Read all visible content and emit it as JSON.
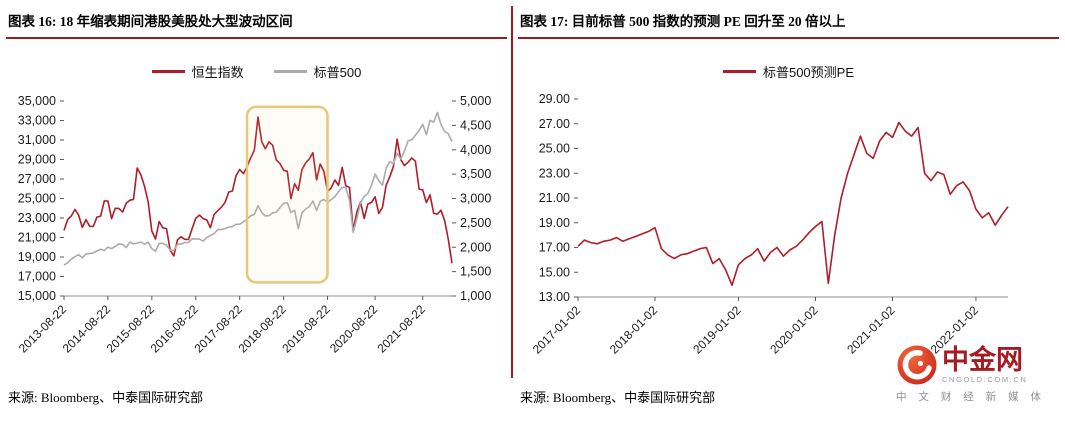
{
  "colors": {
    "accent_red": "#9E1B23",
    "line_red": "#AF1E28",
    "line_gray": "#ABABAB",
    "highlight_gold": "#E8C878",
    "axis_text": "#1C1C1C",
    "logo_red": "#A61B22",
    "logo_orange": "#DF3A24",
    "logo_gray": "#9A9A9A"
  },
  "left_panel": {
    "title": "图表 16: 18 年缩表期间港股美股处大型波动区间",
    "legend": [
      {
        "label": "恒生指数"
      },
      {
        "label": "标普500"
      }
    ],
    "source": "来源: Bloomberg、中泰国际研究部"
  },
  "right_panel": {
    "title": "图表 17: 目前标普 500 指数的预测 PE 回升至 20 倍以上",
    "legend": [
      {
        "label": "标普500预测PE"
      }
    ],
    "source": "来源: Bloomberg、中泰国际研究部"
  },
  "watermark": {
    "brand": "中金网",
    "domain": "CNGOLD.COM.CN",
    "tagline": "中 文 财 经 新 媒 体"
  },
  "chart_data": [
    {
      "id": "hsi-vs-spx",
      "type": "line",
      "title": "18 年缩表期间港股美股处大型波动区间",
      "legend_position": "top",
      "grid": false,
      "n_points": 107,
      "x_tick_labels": [
        "2013-08-22",
        "2014-08-22",
        "2015-08-22",
        "2016-08-22",
        "2017-08-22",
        "2018-08-22",
        "2019-08-22",
        "2020-08-22",
        "2021-08-22"
      ],
      "x_tick_indices": [
        0,
        12,
        24,
        36,
        48,
        60,
        72,
        85,
        98
      ],
      "axes": [
        {
          "id": "left",
          "side": "left",
          "min": 15000,
          "max": 35000,
          "step": 2000,
          "format": "thousands"
        },
        {
          "id": "right",
          "side": "right",
          "min": 1000,
          "max": 5000,
          "step": 500,
          "format": "thousands"
        }
      ],
      "series": [
        {
          "name": "恒生指数",
          "axis": "left",
          "color": "#AF1E28",
          "values": [
            21731,
            22860,
            23206,
            23881,
            23306,
            22035,
            22837,
            22151,
            22134,
            23082,
            23190,
            24757,
            24742,
            22933,
            23998,
            23987,
            23605,
            24507,
            24823,
            24901,
            28133,
            27424,
            26250,
            24636,
            21671,
            20846,
            22640,
            21996,
            21914,
            19683,
            19112,
            20777,
            21067,
            20815,
            20794,
            21891,
            22976,
            23297,
            22935,
            22790,
            22001,
            23361,
            23741,
            24112,
            24615,
            25661,
            25765,
            27324,
            27970,
            27554,
            28246,
            29177,
            29919,
            33350,
            30845,
            30093,
            30808,
            30469,
            28955,
            28583,
            27889,
            27789,
            24980,
            26507,
            25846,
            27942,
            28633,
            29051,
            29699,
            26901,
            28543,
            27778,
            25725,
            26092,
            26907,
            26346,
            28190,
            26313,
            26130,
            21696,
            23603,
            24644,
            22961,
            24427,
            24595,
            25177,
            23459,
            24107,
            26341,
            27231,
            28284,
            31085,
            28980,
            28378,
            28725,
            29152,
            28828,
            25961,
            25879,
            24576,
            25377,
            23475,
            23398,
            23802,
            22713,
            20800,
            18350
          ]
        },
        {
          "name": "标普500",
          "axis": "right",
          "color": "#ABABAB",
          "values": [
            1633,
            1682,
            1757,
            1806,
            1848,
            1783,
            1859,
            1872,
            1884,
            1924,
            1960,
            1931,
            2003,
            1972,
            2018,
            2068,
            2059,
            1995,
            2105,
            2068,
            2086,
            2107,
            2063,
            2104,
            1972,
            1920,
            2079,
            2080,
            2044,
            1940,
            1932,
            2060,
            2065,
            2097,
            2099,
            2174,
            2171,
            2168,
            2126,
            2199,
            2239,
            2279,
            2364,
            2363,
            2384,
            2412,
            2423,
            2470,
            2472,
            2519,
            2575,
            2648,
            2674,
            2850,
            2714,
            2641,
            2648,
            2705,
            2718,
            2816,
            2902,
            2914,
            2712,
            2760,
            2380,
            2704,
            2785,
            2834,
            2946,
            2752,
            2942,
            2980,
            2926,
            2977,
            3038,
            3141,
            3231,
            3226,
            2954,
            2305,
            2585,
            2912,
            3044,
            3100,
            3271,
            3500,
            3363,
            3270,
            3622,
            3756,
            3714,
            3930,
            3811,
            3973,
            4181,
            4204,
            4298,
            4395,
            4523,
            4308,
            4605,
            4567,
            4766,
            4516,
            4374,
            4328,
            4170
          ]
        }
      ],
      "highlight": {
        "x1_index": 50,
        "x2_index": 72,
        "y1_frac": 0.03,
        "y2_frac": 0.93,
        "stroke": "#E8C878",
        "fill": "rgba(240,214,138,0.07)"
      }
    },
    {
      "id": "spx-forward-pe",
      "type": "line",
      "title": "目前标普 500 指数的预测 PE 回升至 20 倍以上",
      "grid": false,
      "n_points": 68,
      "x_tick_labels": [
        "2017-01-02",
        "2018-01-02",
        "2019-01-02",
        "2020-01-02",
        "2021-01-02",
        "2022-01-02"
      ],
      "x_tick_indices": [
        0,
        12,
        25,
        37,
        49,
        62
      ],
      "axes": [
        {
          "id": "left",
          "side": "left",
          "min": 13,
          "max": 29,
          "step": 2,
          "format": "fixed2"
        }
      ],
      "series": [
        {
          "name": "标普500预测PE",
          "axis": "left",
          "color": "#AF1E28",
          "values": [
            17.1,
            17.6,
            17.4,
            17.3,
            17.5,
            17.6,
            17.8,
            17.5,
            17.7,
            17.9,
            18.1,
            18.3,
            18.6,
            16.9,
            16.4,
            16.1,
            16.4,
            16.5,
            16.7,
            16.9,
            17.0,
            15.7,
            16.1,
            15.2,
            13.95,
            15.6,
            16.1,
            16.4,
            16.9,
            15.9,
            16.6,
            17.0,
            16.3,
            16.8,
            17.1,
            17.6,
            18.2,
            18.7,
            19.1,
            14.1,
            18.0,
            21.0,
            23.0,
            24.5,
            26.0,
            24.6,
            24.2,
            25.6,
            26.3,
            25.9,
            27.1,
            26.4,
            26.0,
            26.7,
            23.0,
            22.4,
            23.1,
            22.9,
            21.3,
            22.0,
            22.3,
            21.6,
            20.1,
            19.4,
            19.8,
            18.8,
            19.6,
            20.3
          ]
        }
      ]
    }
  ]
}
